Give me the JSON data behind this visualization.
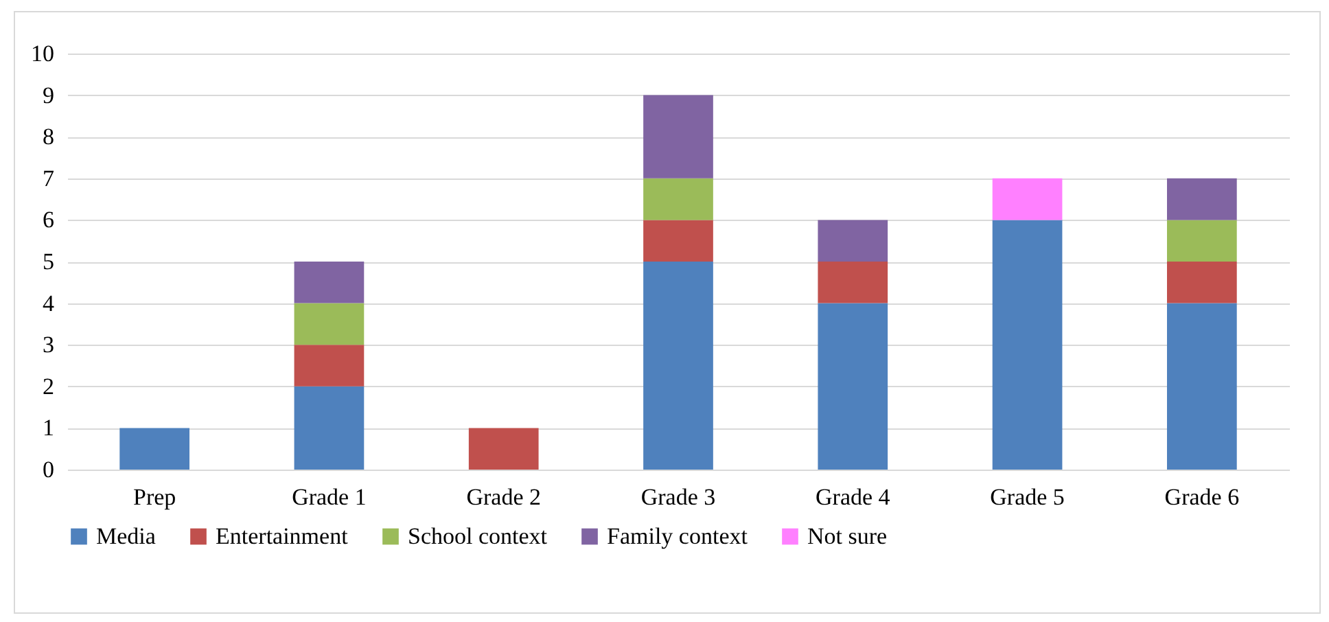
{
  "chart_data": {
    "type": "bar",
    "stacked": true,
    "categories": [
      "Prep",
      "Grade 1",
      "Grade 2",
      "Grade 3",
      "Grade 4",
      "Grade 5",
      "Grade 6"
    ],
    "series": [
      {
        "name": "Media",
        "color": "#4f81bd",
        "values": [
          1,
          2,
          0,
          5,
          4,
          6,
          4
        ]
      },
      {
        "name": "Entertainment",
        "color": "#c0504d",
        "values": [
          0,
          1,
          1,
          1,
          1,
          0,
          1
        ]
      },
      {
        "name": "School context",
        "color": "#9bbb59",
        "values": [
          0,
          1,
          0,
          1,
          0,
          0,
          1
        ]
      },
      {
        "name": "Family context",
        "color": "#8064a2",
        "values": [
          0,
          1,
          0,
          2,
          1,
          0,
          1
        ]
      },
      {
        "name": "Not sure",
        "color": "#ff80ff",
        "values": [
          0,
          0,
          0,
          0,
          0,
          1,
          0
        ]
      }
    ],
    "ylim": [
      0,
      10
    ],
    "yticks": [
      0,
      1,
      2,
      3,
      4,
      5,
      6,
      7,
      8,
      9,
      10
    ],
    "grid": "y",
    "legend": "bottom"
  }
}
